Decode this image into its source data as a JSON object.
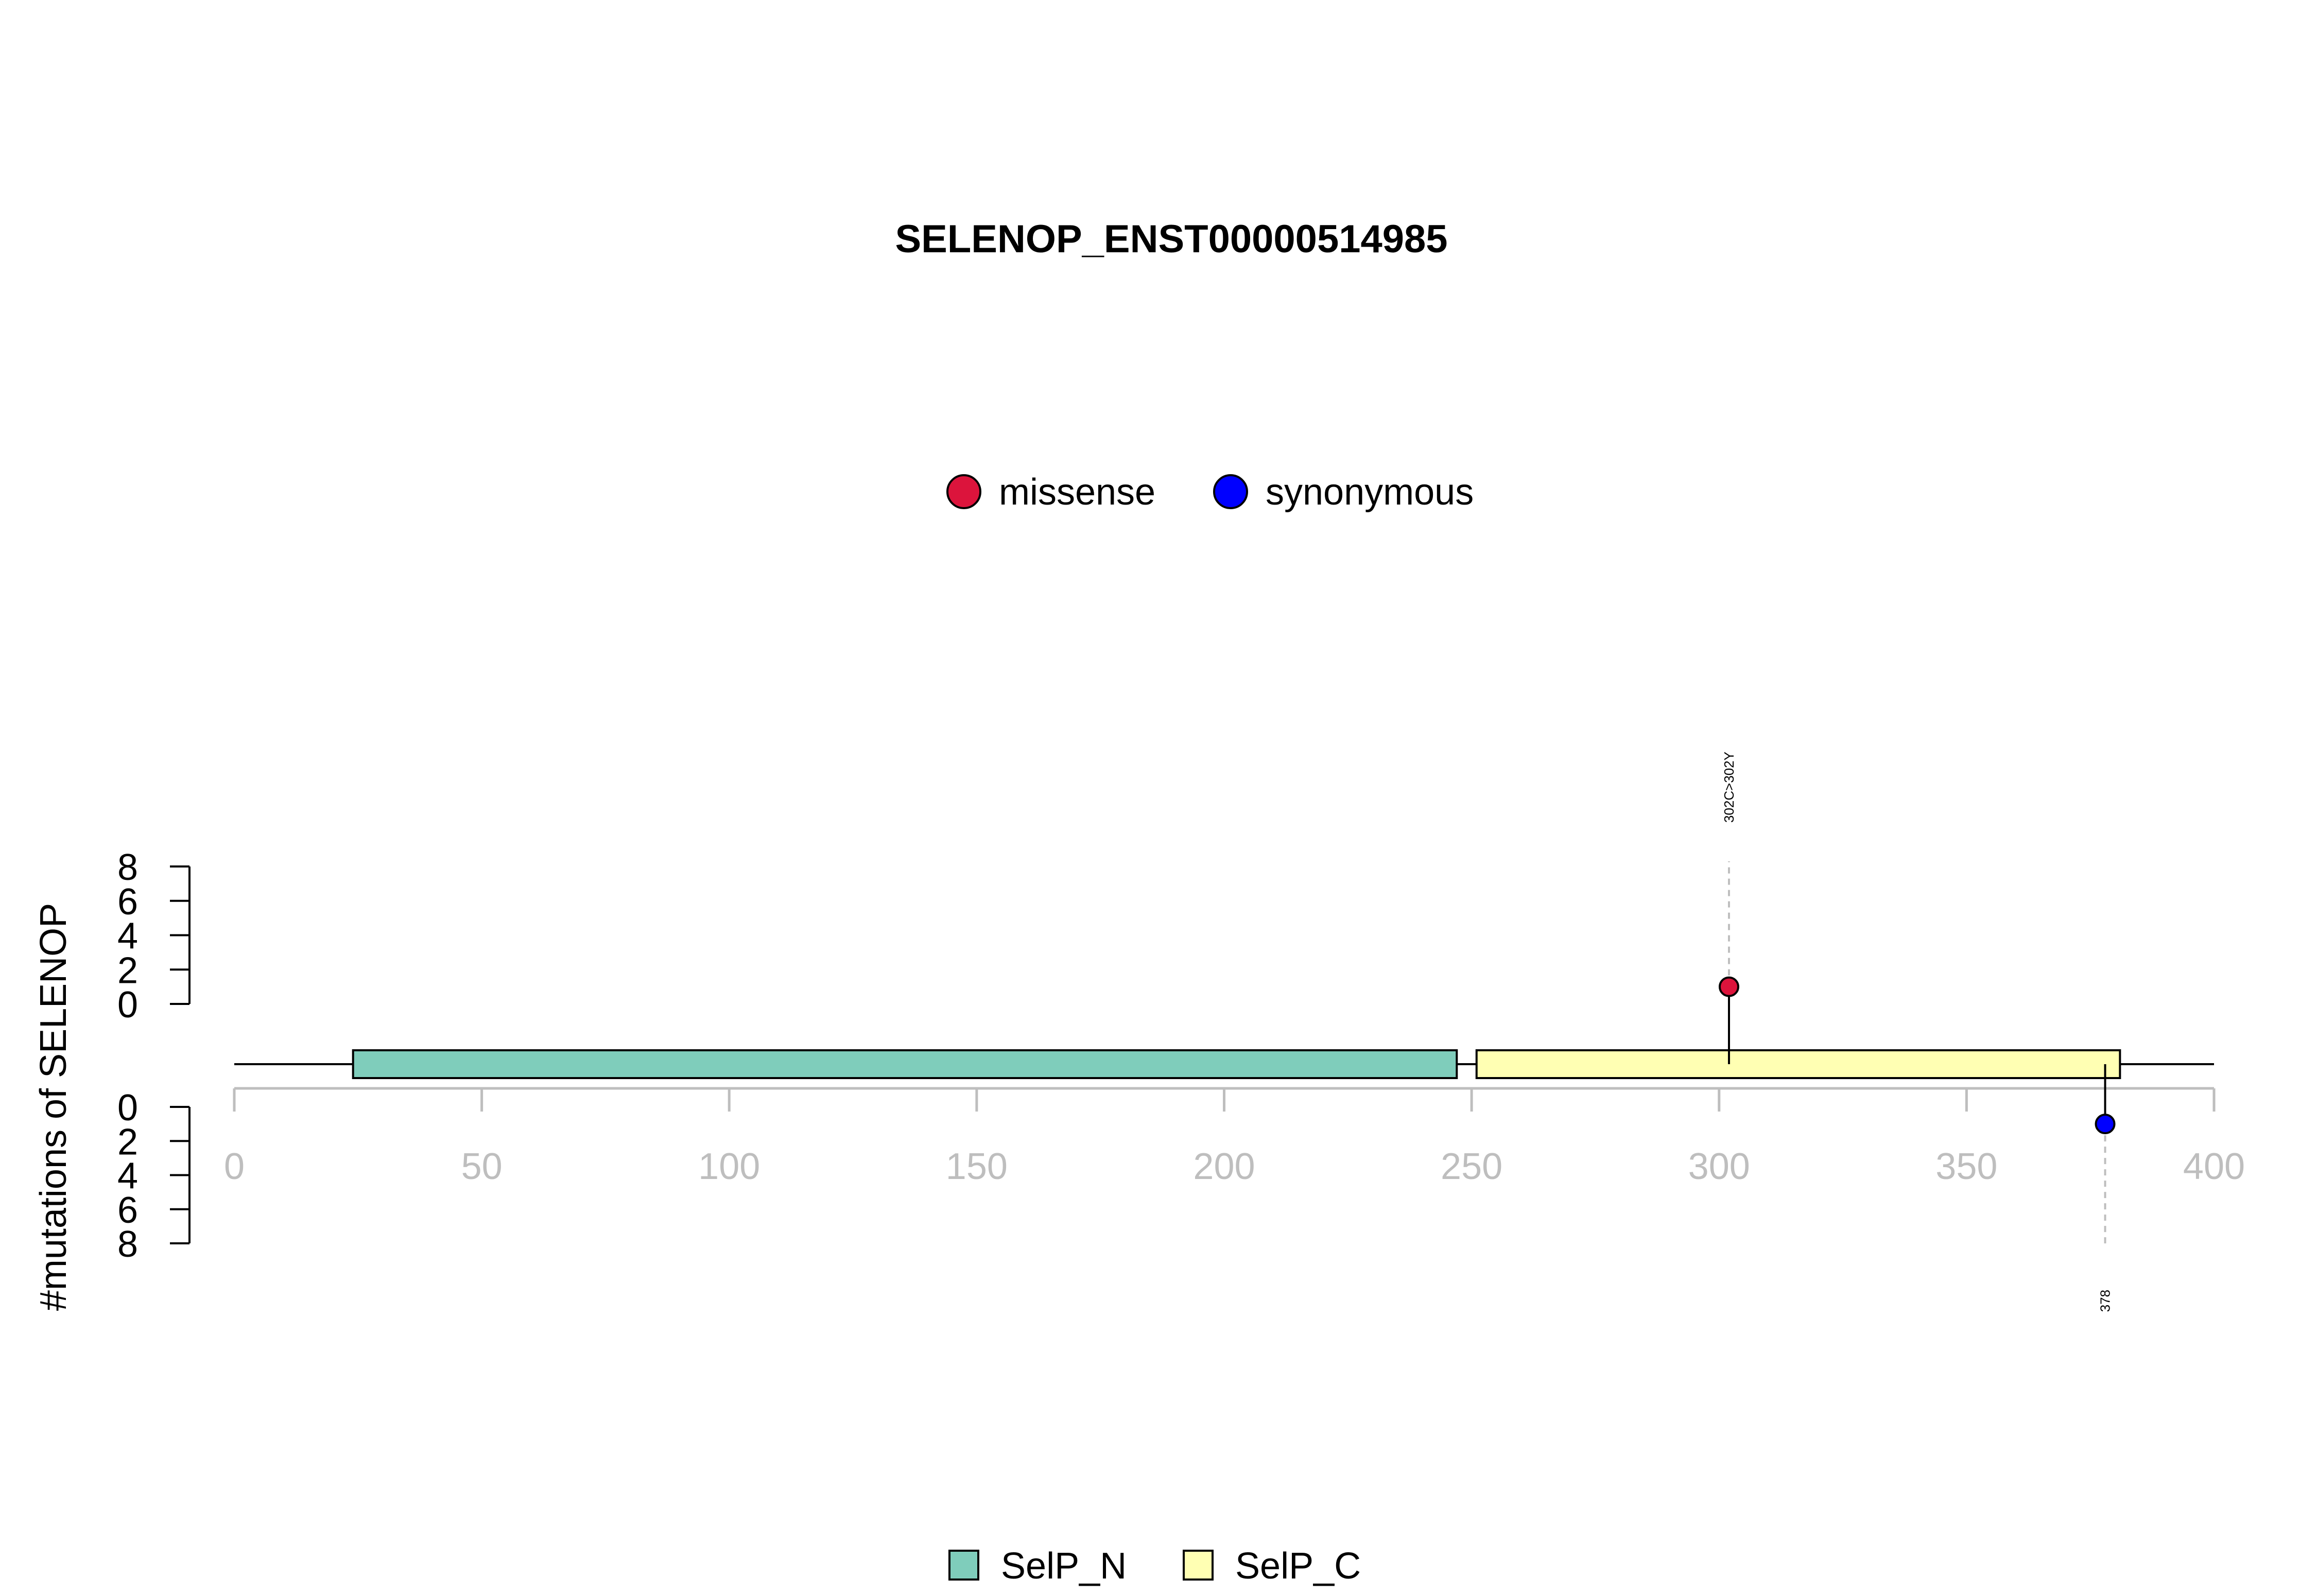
{
  "chart_data": {
    "type": "lollipop",
    "title": "SELENOP_ENST00000514985",
    "ylabel": "#mutations of SELENOP",
    "xlim": [
      0,
      400
    ],
    "x_ticks": [
      0,
      50,
      100,
      150,
      200,
      250,
      300,
      350,
      400
    ],
    "y_ticks": [
      0,
      2,
      4,
      6,
      8
    ],
    "ylim": [
      0,
      8
    ],
    "protein_length": 400,
    "mutation_legend": [
      {
        "label": "missense",
        "color": "#DC143C"
      },
      {
        "label": "synonymous",
        "color": "#0000FF"
      }
    ],
    "domain_legend": [
      {
        "label": "SelP_N",
        "color": "#7FCDBB"
      },
      {
        "label": "SelP_C",
        "color": "#FFFFB3"
      }
    ],
    "domains": [
      {
        "name": "SelP_N",
        "start": 24,
        "end": 247,
        "color": "#7FCDBB"
      },
      {
        "name": "SelP_C",
        "start": 251,
        "end": 381,
        "color": "#FFFFB3"
      }
    ],
    "mutations": [
      {
        "position": 302,
        "count": 1,
        "type": "missense",
        "side": "top",
        "label": "302C>302Y",
        "color": "#DC143C"
      },
      {
        "position": 378,
        "count": 1,
        "type": "synonymous",
        "side": "bottom",
        "label": "378",
        "color": "#0000FF"
      }
    ],
    "axis_color": "#BEBEBE"
  }
}
